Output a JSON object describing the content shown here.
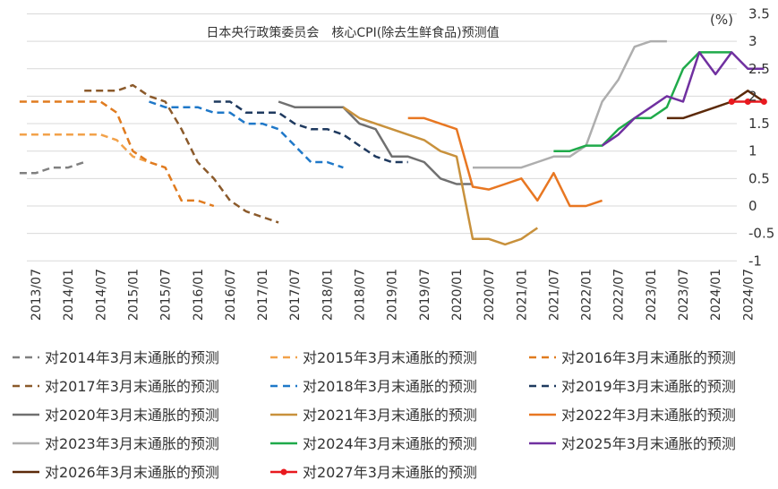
{
  "chart_data": {
    "type": "line",
    "title": "日本央行政策委员会　核心CPI(除去生鲜食品)预测值",
    "unit_label": "(%)",
    "ylim": [
      -1,
      3.5
    ],
    "yticks": [
      "3.5",
      "3",
      "2.5",
      "2",
      "1.5",
      "1",
      "0.5",
      "0",
      "-0.5",
      "-1"
    ],
    "x_tick_labels": [
      "2013/07",
      "2014/01",
      "2014/07",
      "2015/01",
      "2015/07",
      "2016/01",
      "2016/07",
      "2017/01",
      "2017/07",
      "2018/01",
      "2018/07",
      "2019/01",
      "2019/07",
      "2020/01",
      "2020/07",
      "2021/01",
      "2021/07",
      "2022/01",
      "2022/07",
      "2023/01",
      "2023/07",
      "2024/01",
      "2024/07"
    ],
    "legend_position": "bottom",
    "grid": "horizontal",
    "series": [
      {
        "name": "对2014年3月末通胀的预测",
        "color": "#808080",
        "dash": "dash",
        "points": [
          [
            "2013/04",
            0.6
          ],
          [
            "2013/07",
            0.6
          ],
          [
            "2013/10",
            0.7
          ],
          [
            "2014/01",
            0.7
          ],
          [
            "2014/04",
            0.8
          ]
        ]
      },
      {
        "name": "对2015年3月末通胀的预测",
        "color": "#F2A24A",
        "dash": "dash",
        "points": [
          [
            "2013/04",
            1.3
          ],
          [
            "2013/07",
            1.3
          ],
          [
            "2013/10",
            1.3
          ],
          [
            "2014/01",
            1.3
          ],
          [
            "2014/04",
            1.3
          ],
          [
            "2014/07",
            1.3
          ],
          [
            "2014/10",
            1.2
          ],
          [
            "2015/01",
            0.9
          ],
          [
            "2015/04",
            0.8
          ]
        ]
      },
      {
        "name": "对2016年3月末通胀的预测",
        "color": "#E07B1F",
        "dash": "dash",
        "points": [
          [
            "2013/04",
            1.9
          ],
          [
            "2013/07",
            1.9
          ],
          [
            "2013/10",
            1.9
          ],
          [
            "2014/01",
            1.9
          ],
          [
            "2014/04",
            1.9
          ],
          [
            "2014/07",
            1.9
          ],
          [
            "2014/10",
            1.7
          ],
          [
            "2015/01",
            1.0
          ],
          [
            "2015/04",
            0.8
          ],
          [
            "2015/07",
            0.7
          ],
          [
            "2015/10",
            0.1
          ],
          [
            "2016/01",
            0.1
          ],
          [
            "2016/04",
            0.0
          ]
        ]
      },
      {
        "name": "对2017年3月末通胀的预测",
        "color": "#8B5A2B",
        "dash": "dash",
        "points": [
          [
            "2014/04",
            2.1
          ],
          [
            "2014/07",
            2.1
          ],
          [
            "2014/10",
            2.1
          ],
          [
            "2015/01",
            2.2
          ],
          [
            "2015/04",
            2.0
          ],
          [
            "2015/07",
            1.9
          ],
          [
            "2015/10",
            1.4
          ],
          [
            "2016/01",
            0.8
          ],
          [
            "2016/04",
            0.5
          ],
          [
            "2016/07",
            0.1
          ],
          [
            "2016/10",
            -0.1
          ],
          [
            "2017/01",
            -0.2
          ],
          [
            "2017/04",
            -0.3
          ]
        ]
      },
      {
        "name": "对2018年3月末通胀的预测",
        "color": "#1F78C8",
        "dash": "dash",
        "points": [
          [
            "2015/04",
            1.9
          ],
          [
            "2015/07",
            1.8
          ],
          [
            "2015/10",
            1.8
          ],
          [
            "2016/01",
            1.8
          ],
          [
            "2016/04",
            1.7
          ],
          [
            "2016/07",
            1.7
          ],
          [
            "2016/10",
            1.5
          ],
          [
            "2017/01",
            1.5
          ],
          [
            "2017/04",
            1.4
          ],
          [
            "2017/07",
            1.1
          ],
          [
            "2017/10",
            0.8
          ],
          [
            "2018/01",
            0.8
          ],
          [
            "2018/04",
            0.7
          ]
        ]
      },
      {
        "name": "对2019年3月末通胀的预测",
        "color": "#1F3A5F",
        "dash": "dash",
        "points": [
          [
            "2016/04",
            1.9
          ],
          [
            "2016/07",
            1.9
          ],
          [
            "2016/10",
            1.7
          ],
          [
            "2017/01",
            1.7
          ],
          [
            "2017/04",
            1.7
          ],
          [
            "2017/07",
            1.5
          ],
          [
            "2017/10",
            1.4
          ],
          [
            "2018/01",
            1.4
          ],
          [
            "2018/04",
            1.3
          ],
          [
            "2018/07",
            1.1
          ],
          [
            "2018/10",
            0.9
          ],
          [
            "2019/01",
            0.8
          ],
          [
            "2019/04",
            0.8
          ]
        ]
      },
      {
        "name": "对2020年3月末通胀的预测",
        "color": "#707070",
        "dash": "solid",
        "points": [
          [
            "2017/04",
            1.9
          ],
          [
            "2017/07",
            1.8
          ],
          [
            "2017/10",
            1.8
          ],
          [
            "2018/01",
            1.8
          ],
          [
            "2018/04",
            1.8
          ],
          [
            "2018/07",
            1.5
          ],
          [
            "2018/10",
            1.4
          ],
          [
            "2019/01",
            0.9
          ],
          [
            "2019/04",
            0.9
          ],
          [
            "2019/07",
            0.8
          ],
          [
            "2019/10",
            0.5
          ],
          [
            "2020/01",
            0.4
          ],
          [
            "2020/04",
            0.4
          ]
        ]
      },
      {
        "name": "对2021年3月末通胀的预测",
        "color": "#C8913C",
        "dash": "solid",
        "points": [
          [
            "2018/04",
            1.8
          ],
          [
            "2018/07",
            1.6
          ],
          [
            "2018/10",
            1.5
          ],
          [
            "2019/01",
            1.4
          ],
          [
            "2019/04",
            1.3
          ],
          [
            "2019/07",
            1.2
          ],
          [
            "2019/10",
            1.0
          ],
          [
            "2020/01",
            0.9
          ],
          [
            "2020/04",
            -0.6
          ],
          [
            "2020/07",
            -0.6
          ],
          [
            "2020/10",
            -0.7
          ],
          [
            "2021/01",
            -0.6
          ],
          [
            "2021/04",
            -0.4
          ]
        ]
      },
      {
        "name": "对2022年3月末通胀的预测",
        "color": "#E87722",
        "dash": "solid",
        "points": [
          [
            "2019/04",
            1.6
          ],
          [
            "2019/07",
            1.6
          ],
          [
            "2019/10",
            1.5
          ],
          [
            "2020/01",
            1.4
          ],
          [
            "2020/04",
            0.35
          ],
          [
            "2020/07",
            0.3
          ],
          [
            "2020/10",
            0.4
          ],
          [
            "2021/01",
            0.5
          ],
          [
            "2021/04",
            0.1
          ],
          [
            "2021/07",
            0.6
          ],
          [
            "2021/10",
            0.0
          ],
          [
            "2022/01",
            0.0
          ],
          [
            "2022/04",
            0.1
          ]
        ]
      },
      {
        "name": "对2023年3月末通胀的预测",
        "color": "#AEAEAE",
        "dash": "solid",
        "points": [
          [
            "2020/04",
            0.7
          ],
          [
            "2020/07",
            0.7
          ],
          [
            "2020/10",
            0.7
          ],
          [
            "2021/01",
            0.7
          ],
          [
            "2021/04",
            0.8
          ],
          [
            "2021/07",
            0.9
          ],
          [
            "2021/10",
            0.9
          ],
          [
            "2022/01",
            1.1
          ],
          [
            "2022/04",
            1.9
          ],
          [
            "2022/07",
            2.3
          ],
          [
            "2022/10",
            2.9
          ],
          [
            "2023/01",
            3.0
          ],
          [
            "2023/04",
            3.0
          ]
        ]
      },
      {
        "name": "对2024年3月末通胀的预测",
        "color": "#1FAA4A",
        "dash": "solid",
        "points": [
          [
            "2021/07",
            1.0
          ],
          [
            "2021/10",
            1.0
          ],
          [
            "2022/01",
            1.1
          ],
          [
            "2022/04",
            1.1
          ],
          [
            "2022/07",
            1.4
          ],
          [
            "2022/10",
            1.6
          ],
          [
            "2023/01",
            1.6
          ],
          [
            "2023/04",
            1.8
          ],
          [
            "2023/07",
            2.5
          ],
          [
            "2023/10",
            2.8
          ],
          [
            "2024/01",
            2.8
          ],
          [
            "2024/04",
            2.8
          ]
        ]
      },
      {
        "name": "对2025年3月末通胀的预测",
        "color": "#7030A0",
        "dash": "solid",
        "points": [
          [
            "2022/04",
            1.1
          ],
          [
            "2022/07",
            1.3
          ],
          [
            "2022/10",
            1.6
          ],
          [
            "2023/01",
            1.8
          ],
          [
            "2023/04",
            2.0
          ],
          [
            "2023/07",
            1.9
          ],
          [
            "2023/10",
            2.8
          ],
          [
            "2024/01",
            2.4
          ],
          [
            "2024/04",
            2.8
          ],
          [
            "2024/07",
            2.5
          ],
          [
            "2024/10",
            2.5
          ]
        ]
      },
      {
        "name": "对2026年3月末通胀的预测",
        "color": "#5C2A0A",
        "dash": "solid",
        "points": [
          [
            "2023/04",
            1.6
          ],
          [
            "2023/07",
            1.6
          ],
          [
            "2023/10",
            1.7
          ],
          [
            "2024/01",
            1.8
          ],
          [
            "2024/04",
            1.9
          ],
          [
            "2024/07",
            2.1
          ],
          [
            "2024/10",
            1.9
          ]
        ]
      },
      {
        "name": "对2027年3月末通胀的预测",
        "color": "#E8191F",
        "dash": "solid",
        "markers": true,
        "points": [
          [
            "2024/04",
            1.9
          ],
          [
            "2024/07",
            1.9
          ],
          [
            "2024/10",
            1.9
          ]
        ]
      }
    ]
  }
}
